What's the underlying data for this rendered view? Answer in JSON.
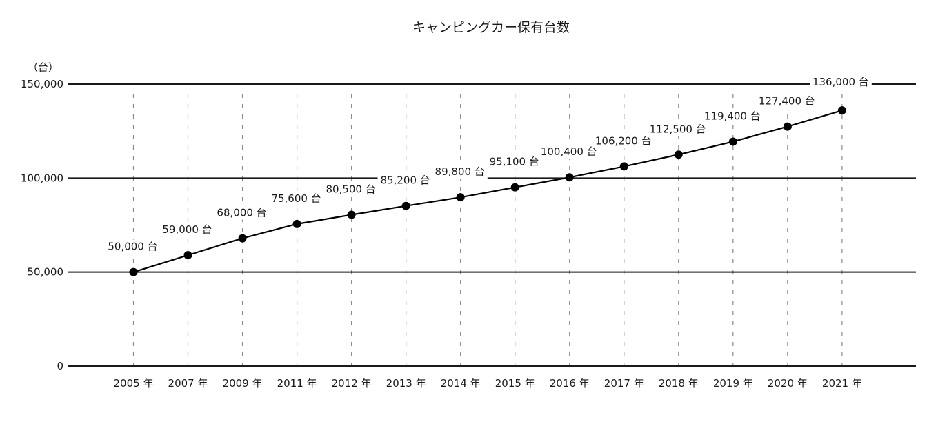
{
  "chart_data": {
    "type": "line",
    "title": "キャンピングカー保有台数",
    "unit_label": "（台）",
    "y_ticks": [
      {
        "value": 0,
        "label": "0"
      },
      {
        "value": 50000,
        "label": "50,000"
      },
      {
        "value": 100000,
        "label": "100,000"
      },
      {
        "value": 150000,
        "label": "150,000"
      }
    ],
    "ylim": [
      0,
      150000
    ],
    "grid": true,
    "categories": [
      "2005 年",
      "2007 年",
      "2009 年",
      "2011 年",
      "2012 年",
      "2013 年",
      "2014 年",
      "2015 年",
      "2016 年",
      "2017 年",
      "2018 年",
      "2019 年",
      "2020 年",
      "2021 年"
    ],
    "series": [
      {
        "values": [
          50000,
          59000,
          68000,
          75600,
          80500,
          85200,
          89800,
          95100,
          100400,
          106200,
          112500,
          119400,
          127400,
          136000
        ],
        "data_labels": [
          "50,000 台",
          "59,000 台",
          "68,000 台",
          "75,600 台",
          "80,500 台",
          "85,200 台",
          "89,800 台",
          "95,100 台",
          "100,400 台",
          "106,200 台",
          "112,500 台",
          "119,400 台",
          "127,400 台",
          "136,000 台"
        ]
      }
    ],
    "colors": {
      "line": "#000000",
      "axis": "#1a1a1a",
      "dashed_grid": "#8a8a8a"
    }
  }
}
